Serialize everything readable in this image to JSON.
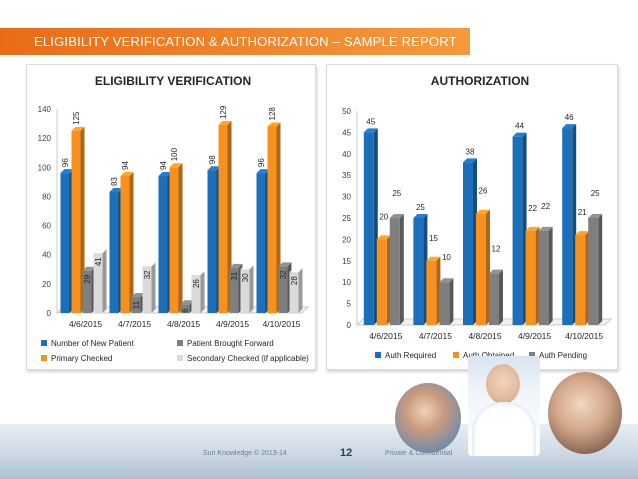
{
  "header": {
    "title": "ELIGIBILITY VERIFICATION & AUTHORIZATION – SAMPLE REPORT"
  },
  "colors": {
    "accent": "#ea6b16",
    "blue": "#1c6fb8",
    "orange": "#f6911f",
    "gray": "#7f7f7f",
    "light": "#dadada"
  },
  "chart_data": [
    {
      "type": "bar",
      "title": "ELIGIBILITY VERIFICATION",
      "categories": [
        "4/6/2015",
        "4/7/2015",
        "4/8/2015",
        "4/9/2015",
        "4/10/2015"
      ],
      "ylim": [
        0,
        140
      ],
      "yticks": [
        "0",
        "20",
        "40",
        "60",
        "80",
        "100",
        "120",
        "140"
      ],
      "series": [
        {
          "name": "Number of New Patient",
          "color": "#1c6fb8",
          "values": [
            96,
            83,
            94,
            98,
            96
          ],
          "labels": [
            "96",
            "83",
            "94",
            "98",
            "96"
          ]
        },
        {
          "name": "Primary Checked",
          "color": "#f6911f",
          "values": [
            125,
            94,
            100,
            129,
            128
          ],
          "labels": [
            "125",
            "94",
            "100",
            "129",
            "128"
          ]
        },
        {
          "name": "Patient Brought Forward",
          "color": "#7f7f7f",
          "values": [
            29,
            11,
            6,
            31,
            32
          ],
          "labels": [
            "29",
            "11",
            "6",
            "31",
            "32"
          ]
        },
        {
          "name": "Secondary Checked (if applicable)",
          "color": "#dadada",
          "values": [
            41,
            32,
            26,
            30,
            28
          ],
          "labels": [
            "41",
            "32",
            "26",
            "30",
            "28"
          ]
        }
      ],
      "legend": [
        "Number of New Patient",
        "Patient Brought Forward",
        "Primary Checked",
        "Secondary Checked (if applicable)"
      ]
    },
    {
      "type": "bar",
      "title": "AUTHORIZATION",
      "categories": [
        "4/6/2015",
        "4/7/2015",
        "4/8/2015",
        "4/9/2015",
        "4/10/2015"
      ],
      "ylim": [
        0,
        50
      ],
      "yticks": [
        "0",
        "5",
        "10",
        "15",
        "20",
        "25",
        "30",
        "35",
        "40",
        "45",
        "50"
      ],
      "series": [
        {
          "name": "Auth Required",
          "color": "#1c6fb8",
          "values": [
            45,
            25,
            38,
            44,
            46
          ],
          "labels": [
            "45",
            "25",
            "38",
            "44",
            "46"
          ]
        },
        {
          "name": "Auth Obtained",
          "color": "#f6911f",
          "values": [
            20,
            15,
            26,
            22,
            21
          ],
          "labels": [
            "20",
            "15",
            "26",
            "22",
            "21"
          ]
        },
        {
          "name": "Auth Pending",
          "color": "#7f7f7f",
          "values": [
            25,
            10,
            12,
            22,
            25
          ],
          "labels": [
            "25",
            "10",
            "12",
            "22",
            "25"
          ]
        }
      ],
      "legend": [
        "Auth Required",
        "Auth Obtained",
        "Auth Pending"
      ]
    }
  ],
  "footer": {
    "copyright": "Sun Knowledge © 2013-14",
    "page": "12",
    "private": "Private & Confidential"
  }
}
